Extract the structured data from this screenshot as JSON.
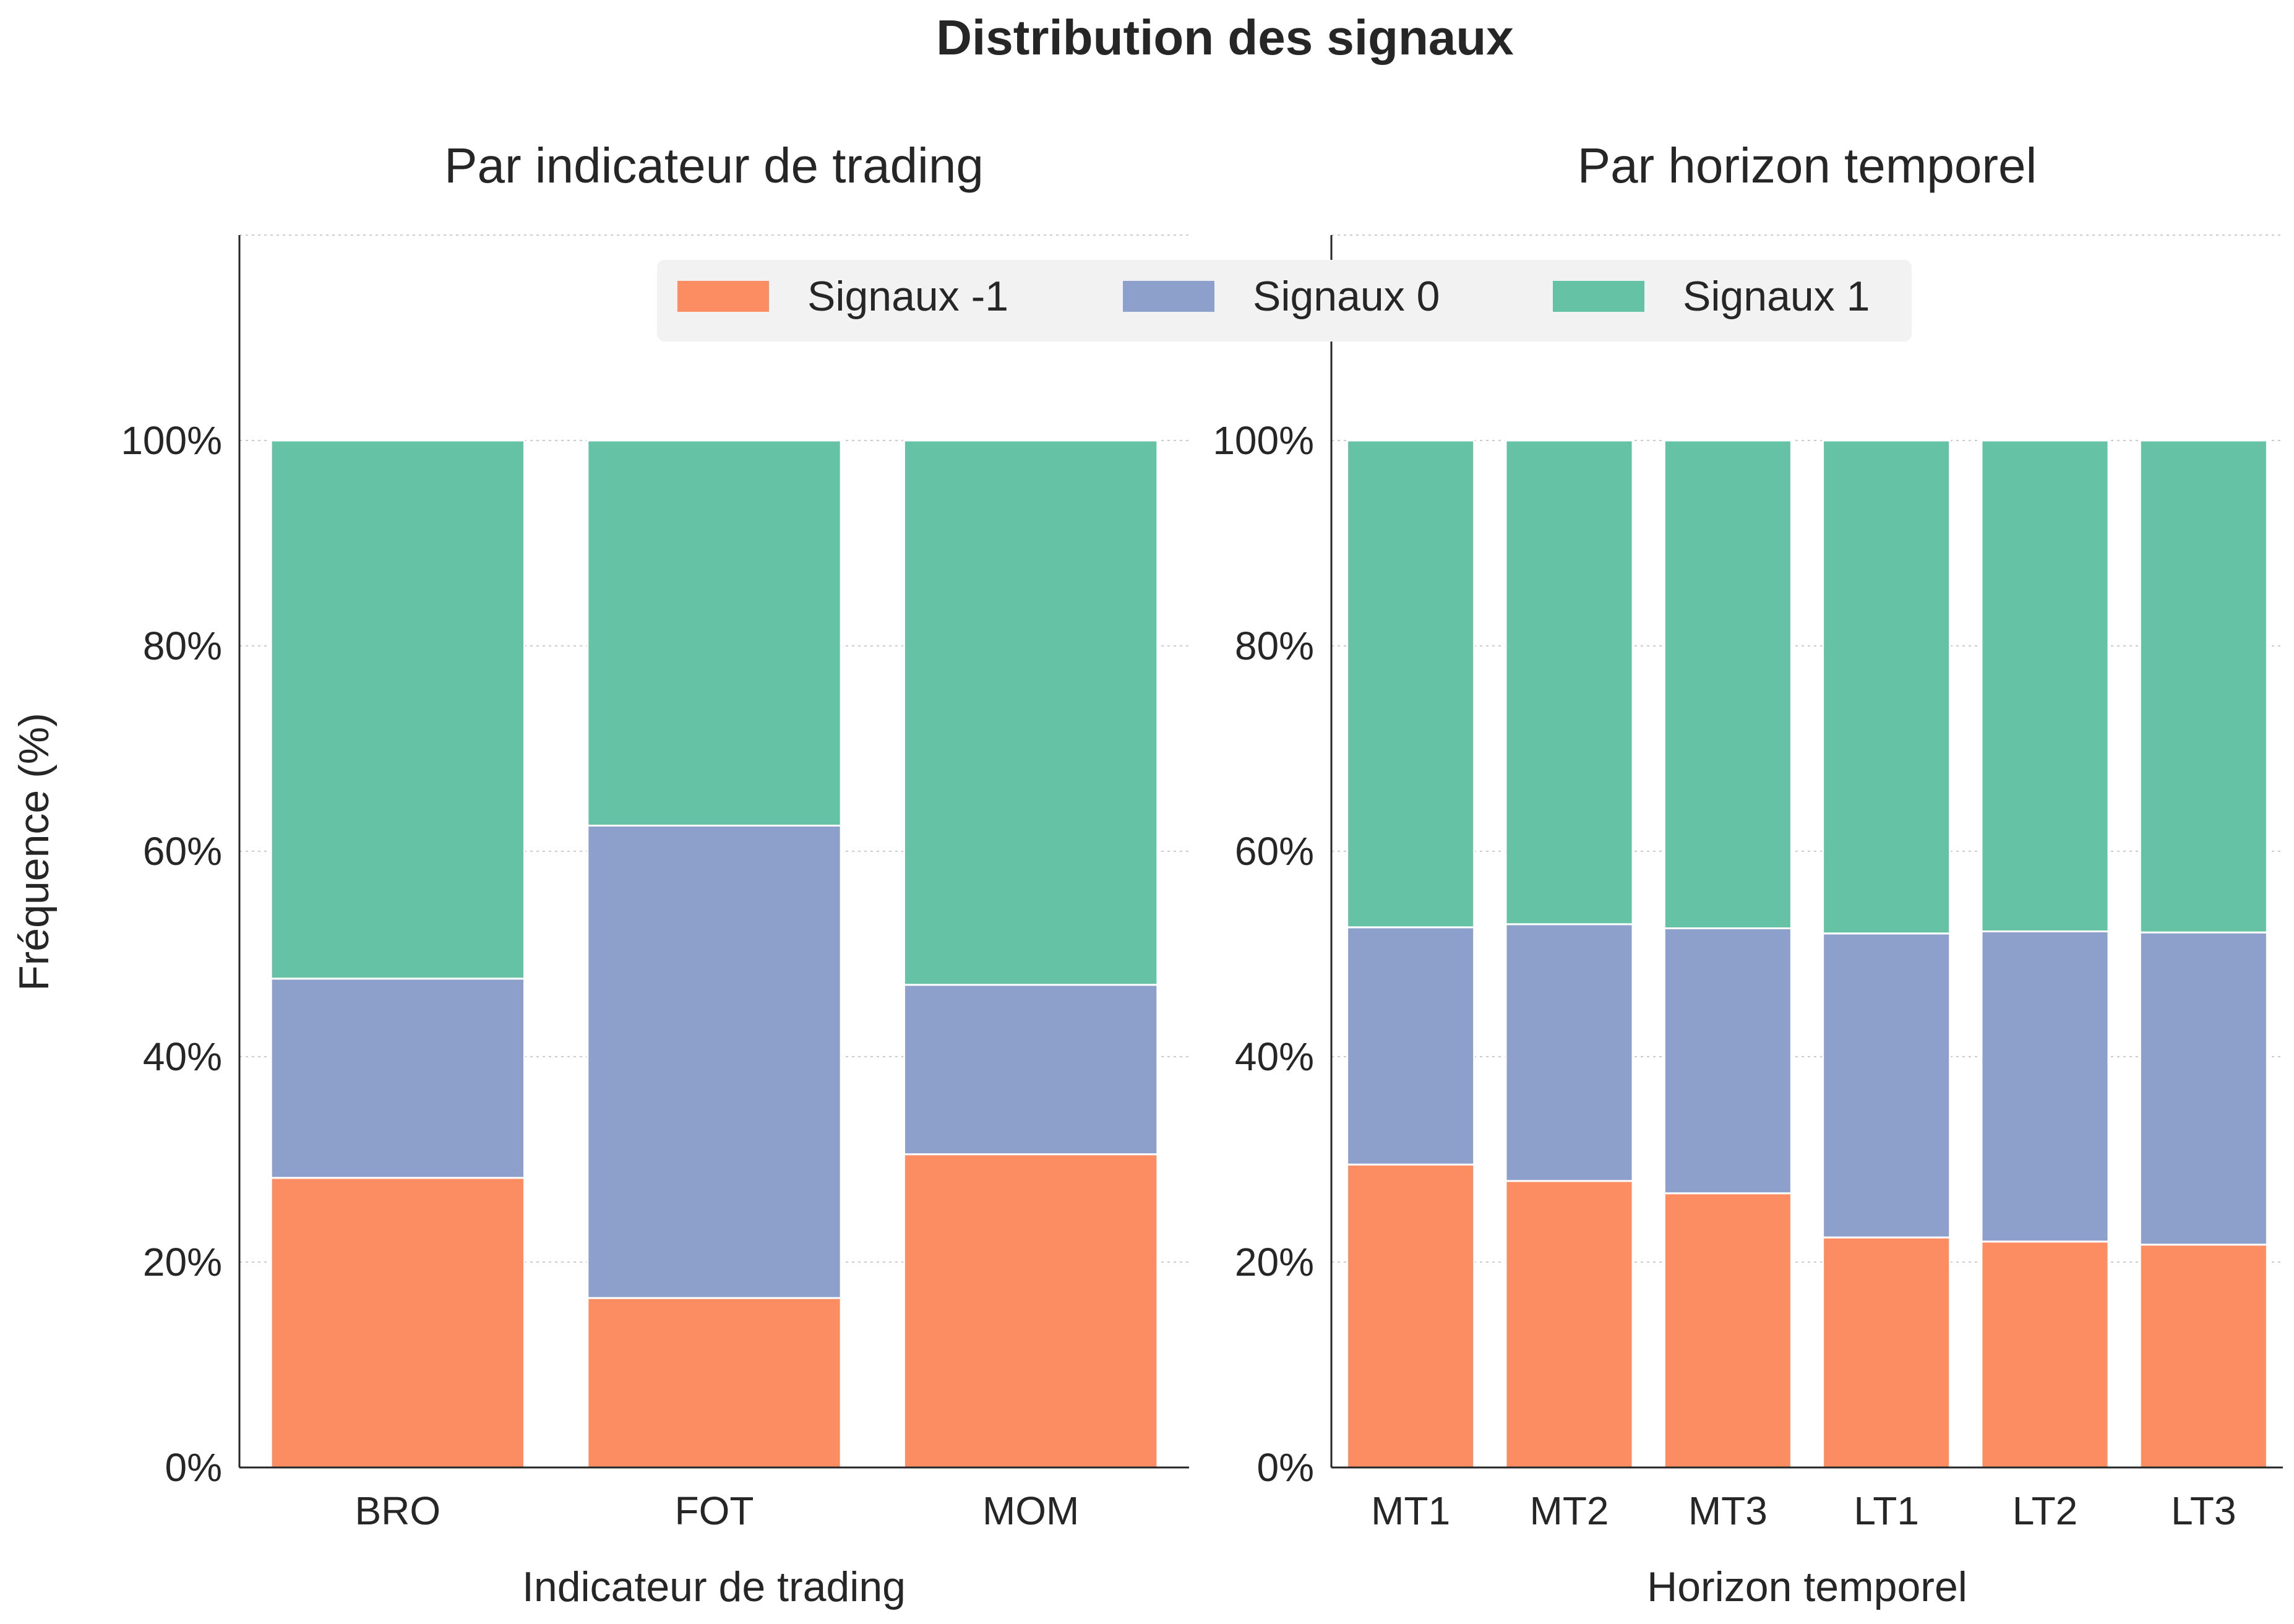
{
  "figure": {
    "suptitle": "Distribution des signaux",
    "ylabel": "Fréquence (%)"
  },
  "legend": {
    "placement": "upper-center",
    "entries": [
      {
        "label": "Signaux -1",
        "color": "#fc8d62"
      },
      {
        "label": "Signaux 0",
        "color": "#8da0cb"
      },
      {
        "label": "Signaux 1",
        "color": "#66c2a5"
      }
    ]
  },
  "chart_data": [
    {
      "type": "bar",
      "stacked": true,
      "title": "Par indicateur de trading",
      "xlabel": "Indicateur de trading",
      "ylabel": "Fréquence (%)",
      "categories": [
        "BRO",
        "FOT",
        "MOM"
      ],
      "series": [
        {
          "name": "Signaux -1",
          "color": "#fc8d62",
          "values": [
            28.2,
            16.5,
            30.5
          ]
        },
        {
          "name": "Signaux 0",
          "color": "#8da0cb",
          "values": [
            19.4,
            46.0,
            16.5
          ]
        },
        {
          "name": "Signaux 1",
          "color": "#66c2a5",
          "values": [
            52.4,
            37.5,
            53.0
          ]
        }
      ],
      "ylim": [
        0,
        120
      ],
      "yticks": [
        "0%",
        "20%",
        "40%",
        "60%",
        "80%",
        "100%"
      ],
      "grid": true
    },
    {
      "type": "bar",
      "stacked": true,
      "title": "Par horizon temporel",
      "xlabel": "Horizon temporel",
      "ylabel": "",
      "categories": [
        "MT1",
        "MT2",
        "MT3",
        "LT1",
        "LT2",
        "LT3"
      ],
      "series": [
        {
          "name": "Signaux -1",
          "color": "#fc8d62",
          "values": [
            29.5,
            27.9,
            26.7,
            22.4,
            22.0,
            21.7
          ]
        },
        {
          "name": "Signaux 0",
          "color": "#8da0cb",
          "values": [
            23.1,
            25.0,
            25.8,
            29.6,
            30.2,
            30.4
          ]
        },
        {
          "name": "Signaux 1",
          "color": "#66c2a5",
          "values": [
            47.4,
            47.1,
            47.5,
            48.0,
            47.8,
            47.9
          ]
        }
      ],
      "ylim": [
        0,
        120
      ],
      "yticks": [
        "0%",
        "20%",
        "40%",
        "60%",
        "80%",
        "100%"
      ],
      "grid": true
    }
  ]
}
